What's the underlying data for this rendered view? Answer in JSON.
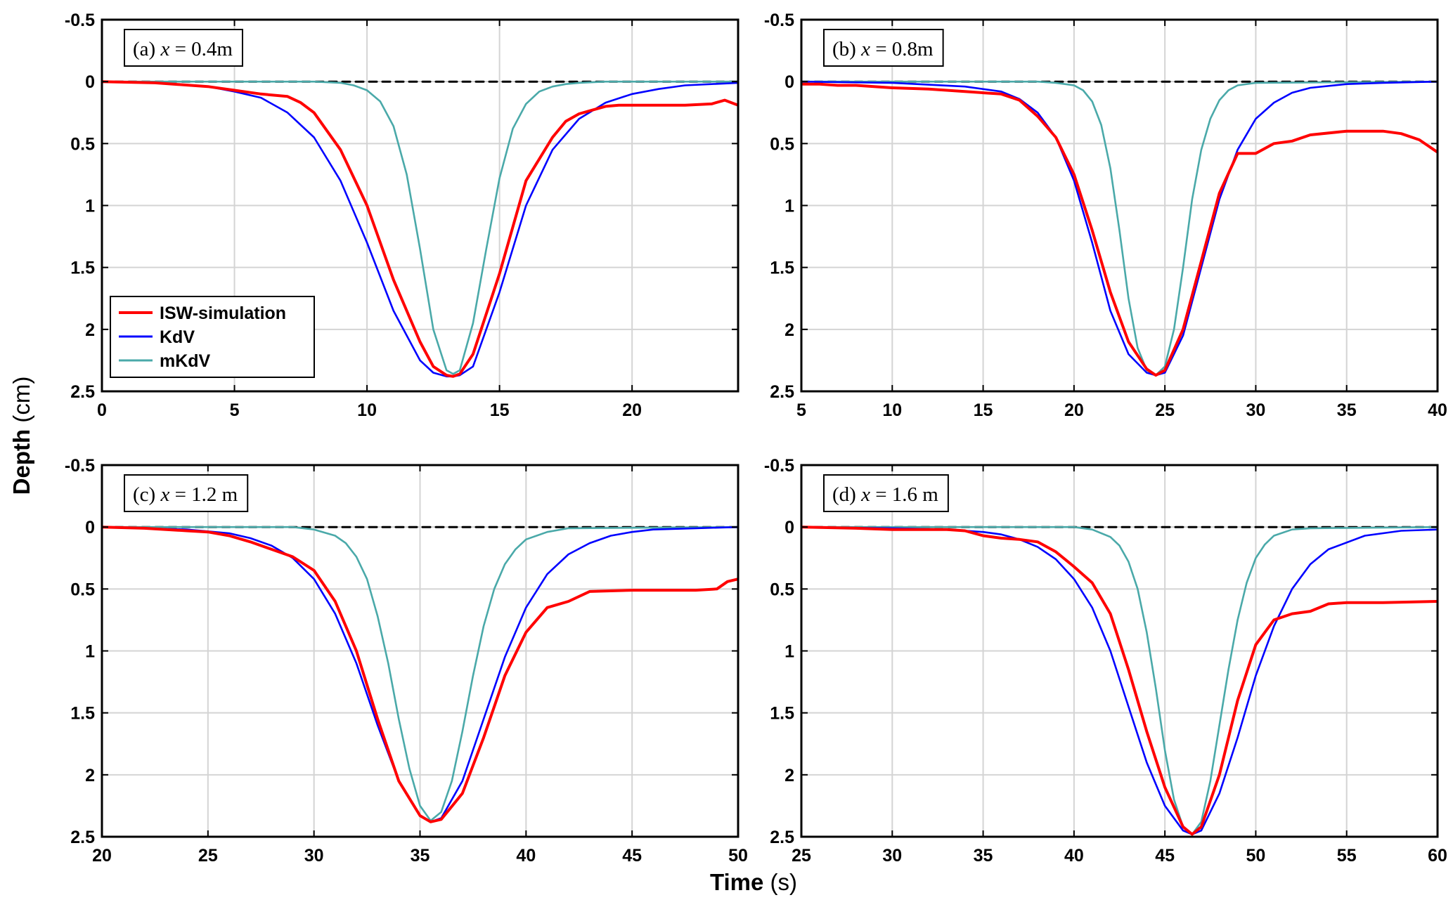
{
  "figure": {
    "xlabel_bold": "Time",
    "xlabel_unit": " (s)",
    "ylabel_bold": "Depth",
    "ylabel_unit": " (cm)"
  },
  "legend": {
    "entries": [
      {
        "name": "ISW-simulation",
        "color": "#ff0000"
      },
      {
        "name": "KdV",
        "color": "#0000ff"
      },
      {
        "name": "mKdV",
        "color": "#4aa9a9"
      }
    ]
  },
  "chart_data": [
    {
      "type": "line",
      "panel_label": "(a) x = 0.4m",
      "label_prefix": "(a) ",
      "label_var": "x",
      "label_rest": " = 0.4m",
      "xlim": [
        0,
        24
      ],
      "ylim": [
        -0.5,
        2.5
      ],
      "y_reversed": true,
      "xticks": [
        0,
        5,
        10,
        15,
        20
      ],
      "yticks": [
        -0.5,
        0,
        0.5,
        1,
        1.5,
        2,
        2.5
      ],
      "grid": true,
      "legend": "lower-left",
      "series": [
        {
          "name": "ISW-simulation",
          "color": "#ff0000",
          "x": [
            0,
            2,
            4,
            5,
            6,
            7,
            7.5,
            8,
            9,
            10,
            11,
            12,
            12.5,
            13,
            13.25,
            13.5,
            14,
            15,
            16,
            17,
            17.5,
            18,
            18.5,
            19,
            19.5,
            20,
            21,
            22,
            23,
            23.5,
            24
          ],
          "y": [
            0,
            0.01,
            0.04,
            0.07,
            0.1,
            0.12,
            0.17,
            0.25,
            0.55,
            1.0,
            1.6,
            2.1,
            2.3,
            2.37,
            2.38,
            2.36,
            2.2,
            1.55,
            0.8,
            0.45,
            0.32,
            0.26,
            0.23,
            0.2,
            0.19,
            0.19,
            0.19,
            0.19,
            0.18,
            0.15,
            0.19
          ]
        },
        {
          "name": "KdV",
          "color": "#0000ff",
          "x": [
            0,
            2,
            4,
            5,
            6,
            7,
            8,
            9,
            10,
            11,
            12,
            12.5,
            13,
            13.25,
            13.5,
            14,
            15,
            16,
            17,
            18,
            19,
            20,
            21,
            22,
            23,
            24
          ],
          "y": [
            0,
            0.01,
            0.04,
            0.08,
            0.13,
            0.25,
            0.45,
            0.8,
            1.3,
            1.85,
            2.25,
            2.35,
            2.38,
            2.38,
            2.37,
            2.3,
            1.7,
            1.0,
            0.55,
            0.3,
            0.17,
            0.1,
            0.06,
            0.03,
            0.02,
            0.01
          ]
        },
        {
          "name": "mKdV",
          "color": "#4aa9a9",
          "x": [
            0,
            8,
            9,
            9.5,
            10,
            10.5,
            11,
            11.5,
            12,
            12.5,
            13,
            13.25,
            13.5,
            14,
            14.5,
            15,
            15.5,
            16,
            16.5,
            17,
            17.5,
            18,
            19,
            24
          ],
          "y": [
            0,
            0,
            0.01,
            0.03,
            0.07,
            0.16,
            0.36,
            0.75,
            1.35,
            2.0,
            2.33,
            2.36,
            2.33,
            1.95,
            1.35,
            0.78,
            0.38,
            0.18,
            0.08,
            0.04,
            0.02,
            0.01,
            0,
            0
          ]
        },
        {
          "name": "",
          "color": "#000000",
          "dashed": true,
          "x": [
            0,
            24
          ],
          "y": [
            0,
            0
          ]
        }
      ]
    },
    {
      "type": "line",
      "panel_label": "(b) x = 0.8m",
      "label_prefix": "(b) ",
      "label_var": "x",
      "label_rest": " = 0.8m",
      "xlim": [
        5,
        40
      ],
      "ylim": [
        -0.5,
        2.5
      ],
      "y_reversed": true,
      "xticks": [
        5,
        10,
        15,
        20,
        25,
        30,
        35,
        40
      ],
      "yticks": [
        -0.5,
        0,
        0.5,
        1,
        1.5,
        2,
        2.5
      ],
      "grid": true,
      "series": [
        {
          "name": "ISW-simulation",
          "color": "#ff0000",
          "x": [
            5,
            6,
            7,
            8,
            10,
            12,
            14,
            16,
            17,
            18,
            19,
            20,
            21,
            22,
            23,
            24,
            24.5,
            25,
            26,
            27,
            28,
            29,
            30,
            31,
            32,
            33,
            35,
            37,
            38,
            39,
            40
          ],
          "y": [
            0.02,
            0.02,
            0.03,
            0.03,
            0.05,
            0.06,
            0.08,
            0.1,
            0.15,
            0.28,
            0.45,
            0.75,
            1.2,
            1.7,
            2.1,
            2.32,
            2.37,
            2.33,
            2.0,
            1.45,
            0.9,
            0.58,
            0.58,
            0.5,
            0.48,
            0.43,
            0.4,
            0.4,
            0.42,
            0.47,
            0.57
          ]
        },
        {
          "name": "KdV",
          "color": "#0000ff",
          "x": [
            5,
            10,
            14,
            16,
            17,
            18,
            19,
            20,
            21,
            22,
            23,
            24,
            24.5,
            25,
            26,
            27,
            28,
            29,
            30,
            31,
            32,
            33,
            35,
            37,
            40
          ],
          "y": [
            0,
            0.01,
            0.04,
            0.08,
            0.14,
            0.25,
            0.45,
            0.8,
            1.3,
            1.85,
            2.2,
            2.35,
            2.37,
            2.35,
            2.05,
            1.5,
            0.95,
            0.55,
            0.3,
            0.17,
            0.09,
            0.05,
            0.02,
            0.01,
            0
          ]
        },
        {
          "name": "mKdV",
          "color": "#4aa9a9",
          "x": [
            5,
            18,
            19,
            20,
            20.5,
            21,
            21.5,
            22,
            22.5,
            23,
            23.5,
            24,
            24.5,
            25,
            25.5,
            26,
            26.5,
            27,
            27.5,
            28,
            28.5,
            29,
            30,
            40
          ],
          "y": [
            0,
            0,
            0.01,
            0.03,
            0.07,
            0.16,
            0.35,
            0.7,
            1.2,
            1.75,
            2.15,
            2.33,
            2.37,
            2.3,
            2.0,
            1.5,
            0.95,
            0.55,
            0.3,
            0.15,
            0.07,
            0.03,
            0.01,
            0
          ]
        },
        {
          "name": "",
          "color": "#000000",
          "dashed": true,
          "x": [
            5,
            40
          ],
          "y": [
            0,
            0
          ]
        }
      ]
    },
    {
      "type": "line",
      "panel_label": "(c) x = 1.2 m",
      "label_prefix": "(c) ",
      "label_var": "x",
      "label_rest": " = 1.2 m",
      "xlim": [
        20,
        50
      ],
      "ylim": [
        -0.5,
        2.5
      ],
      "y_reversed": true,
      "xticks": [
        20,
        25,
        30,
        35,
        40,
        45,
        50
      ],
      "yticks": [
        -0.5,
        0,
        0.5,
        1,
        1.5,
        2,
        2.5
      ],
      "grid": true,
      "series": [
        {
          "name": "ISW-simulation",
          "color": "#ff0000",
          "x": [
            20,
            22,
            24,
            25,
            26,
            27,
            28,
            29,
            30,
            31,
            32,
            33,
            34,
            35,
            35.5,
            36,
            37,
            38,
            39,
            40,
            41,
            42,
            43,
            45,
            47,
            48,
            49,
            49.5,
            50
          ],
          "y": [
            0,
            0.01,
            0.03,
            0.04,
            0.07,
            0.12,
            0.18,
            0.24,
            0.35,
            0.6,
            1.0,
            1.55,
            2.05,
            2.33,
            2.38,
            2.36,
            2.15,
            1.7,
            1.2,
            0.85,
            0.65,
            0.6,
            0.52,
            0.51,
            0.51,
            0.51,
            0.5,
            0.44,
            0.42
          ]
        },
        {
          "name": "KdV",
          "color": "#0000ff",
          "x": [
            20,
            24,
            26,
            27,
            28,
            29,
            30,
            31,
            32,
            33,
            34,
            35,
            35.5,
            36,
            37,
            38,
            39,
            40,
            41,
            42,
            43,
            44,
            45,
            46,
            48,
            50
          ],
          "y": [
            0,
            0.02,
            0.05,
            0.09,
            0.15,
            0.25,
            0.42,
            0.7,
            1.1,
            1.6,
            2.05,
            2.33,
            2.38,
            2.35,
            2.05,
            1.55,
            1.05,
            0.65,
            0.38,
            0.22,
            0.13,
            0.07,
            0.04,
            0.02,
            0.01,
            0
          ]
        },
        {
          "name": "mKdV",
          "color": "#4aa9a9",
          "x": [
            20,
            29,
            30,
            31,
            31.5,
            32,
            32.5,
            33,
            33.5,
            34,
            34.5,
            35,
            35.5,
            36,
            36.5,
            37,
            37.5,
            38,
            38.5,
            39,
            39.5,
            40,
            41,
            42,
            50
          ],
          "y": [
            0,
            0,
            0.02,
            0.07,
            0.13,
            0.24,
            0.42,
            0.72,
            1.1,
            1.55,
            1.95,
            2.25,
            2.37,
            2.3,
            2.05,
            1.65,
            1.2,
            0.8,
            0.5,
            0.3,
            0.18,
            0.1,
            0.04,
            0.01,
            0
          ]
        },
        {
          "name": "",
          "color": "#000000",
          "dashed": true,
          "x": [
            20,
            50
          ],
          "y": [
            0,
            0
          ]
        }
      ]
    },
    {
      "type": "line",
      "panel_label": "(d) x = 1.6 m",
      "label_prefix": "(d) ",
      "label_var": "x",
      "label_rest": " = 1.6 m",
      "xlim": [
        25,
        60
      ],
      "ylim": [
        -0.5,
        2.5
      ],
      "y_reversed": true,
      "xticks": [
        25,
        30,
        35,
        40,
        45,
        50,
        55,
        60
      ],
      "yticks": [
        -0.5,
        0,
        0.5,
        1,
        1.5,
        2,
        2.5
      ],
      "grid": true,
      "series": [
        {
          "name": "ISW-simulation",
          "color": "#ff0000",
          "x": [
            25,
            28,
            30,
            33,
            34,
            35,
            36,
            37,
            38,
            39,
            40,
            41,
            42,
            43,
            44,
            45,
            46,
            46.5,
            47,
            48,
            49,
            50,
            51,
            52,
            53,
            54,
            55,
            57,
            60
          ],
          "y": [
            0,
            0.01,
            0.02,
            0.02,
            0.03,
            0.07,
            0.09,
            0.1,
            0.12,
            0.2,
            0.32,
            0.45,
            0.7,
            1.15,
            1.65,
            2.1,
            2.42,
            2.48,
            2.42,
            2.0,
            1.4,
            0.95,
            0.75,
            0.7,
            0.68,
            0.62,
            0.61,
            0.61,
            0.6
          ]
        },
        {
          "name": "KdV",
          "color": "#0000ff",
          "x": [
            25,
            30,
            33,
            35,
            36,
            37,
            38,
            39,
            40,
            41,
            42,
            43,
            44,
            45,
            46,
            46.5,
            47,
            48,
            49,
            50,
            51,
            52,
            53,
            54,
            56,
            58,
            60
          ],
          "y": [
            0,
            0.01,
            0.02,
            0.04,
            0.06,
            0.1,
            0.16,
            0.26,
            0.42,
            0.65,
            1.0,
            1.45,
            1.9,
            2.25,
            2.45,
            2.48,
            2.45,
            2.15,
            1.7,
            1.2,
            0.8,
            0.5,
            0.3,
            0.18,
            0.07,
            0.03,
            0.02
          ]
        },
        {
          "name": "mKdV",
          "color": "#4aa9a9",
          "x": [
            25,
            40,
            41,
            42,
            42.5,
            43,
            43.5,
            44,
            44.5,
            45,
            45.5,
            46,
            46.5,
            47,
            47.5,
            48,
            48.5,
            49,
            49.5,
            50,
            50.5,
            51,
            52,
            53,
            60
          ],
          "y": [
            0,
            0,
            0.02,
            0.08,
            0.15,
            0.28,
            0.5,
            0.85,
            1.3,
            1.8,
            2.2,
            2.42,
            2.48,
            2.38,
            2.05,
            1.6,
            1.15,
            0.75,
            0.45,
            0.25,
            0.14,
            0.07,
            0.02,
            0.01,
            0
          ]
        },
        {
          "name": "",
          "color": "#000000",
          "dashed": true,
          "x": [
            25,
            60
          ],
          "y": [
            0,
            0
          ]
        }
      ]
    }
  ]
}
